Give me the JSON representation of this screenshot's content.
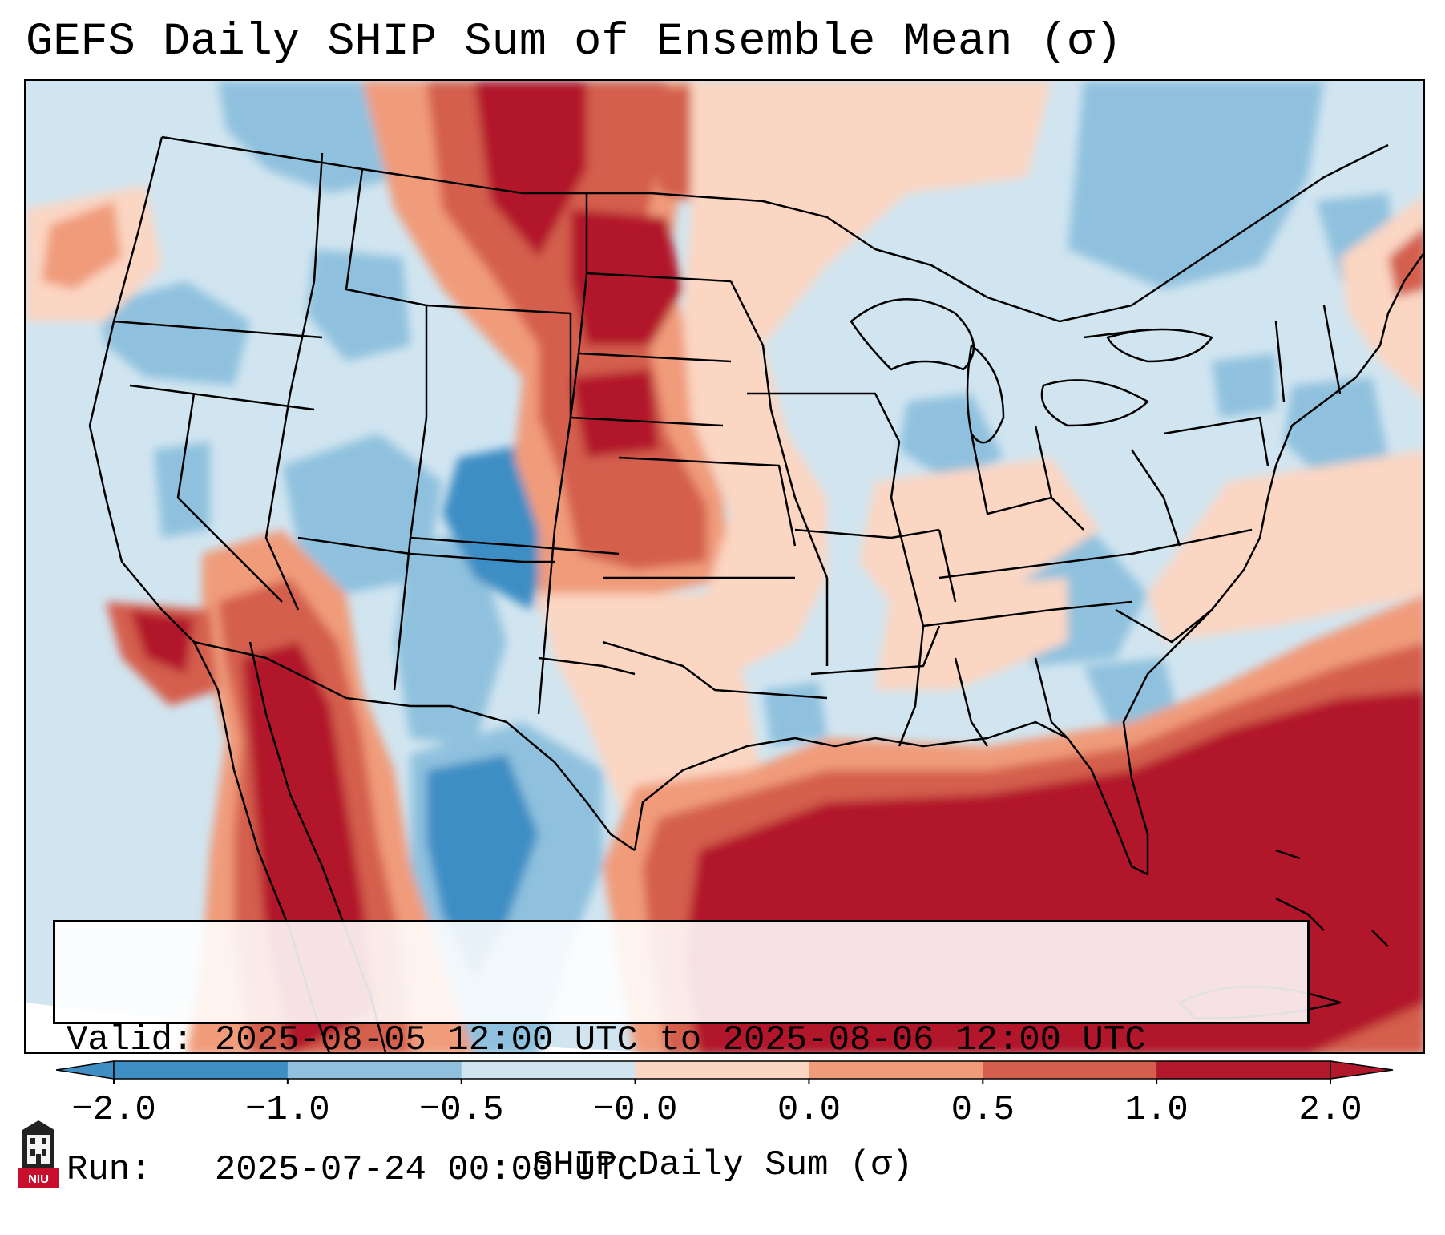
{
  "title": "GEFS Daily SHIP Sum of Ensemble Mean (σ)",
  "info": {
    "valid_label": "Valid:",
    "valid_value": "2025-08-05 12:00 UTC to 2025-08-06 12:00 UTC",
    "run_label": "Run:",
    "run_value": "2025-07-24 00:00 UTC"
  },
  "colorbar": {
    "label": "SHIP Daily Sum (σ)",
    "ticks": [
      "−2.0",
      "−1.0",
      "−0.5",
      "−0.0",
      "0.0",
      "0.5",
      "1.0",
      "2.0"
    ],
    "colors": [
      "#3e8ec4",
      "#8fc1de",
      "#d1e5f0",
      "#f7f7f7",
      "#fbd6c3",
      "#f09b7a",
      "#d45f4e",
      "#b2182b"
    ],
    "extend": "both"
  },
  "logo": {
    "text": "NIU",
    "icon": "niu-university-logo-icon"
  },
  "map": {
    "region": "Contiguous United States",
    "palette": {
      "deep_red": "#b2182b",
      "red": "#d45f4e",
      "salmon": "#f09b7a",
      "peach": "#fbd6c3",
      "light_blue": "#d1e5f0",
      "mid_blue": "#8fc1de",
      "blue": "#3e8ec4"
    }
  }
}
